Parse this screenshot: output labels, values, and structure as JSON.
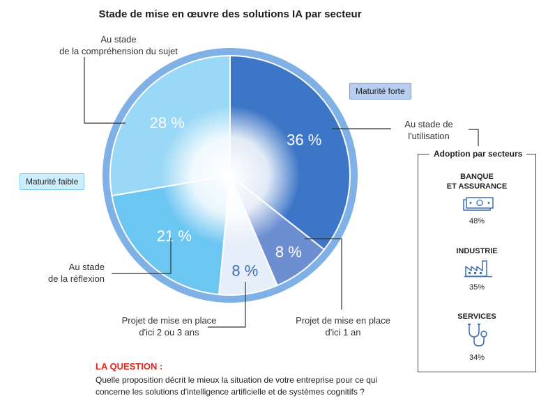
{
  "chart_data": {
    "type": "pie",
    "title": "Stade de mise en œuvre des solutions IA par secteur",
    "slices": [
      {
        "label": "Au stade de l'utilisation",
        "value": 36,
        "value_label": "36 %",
        "color": "#3d76c7"
      },
      {
        "label": "Projet de mise en place d'ici 1 an",
        "value": 8,
        "value_label": "8 %",
        "color": "#6d8fd2"
      },
      {
        "label": "Projet de mise en place d'ici 2 ou 3 ans",
        "value": 8,
        "value_label": "8 %",
        "color": "#e6eef9"
      },
      {
        "label": "Au stade de la réflexion",
        "value": 21,
        "value_label": "21 %",
        "color": "#6cc6f2"
      },
      {
        "label": "Au stade de la compréhension du sujet",
        "value": 28,
        "value_label": "28 %",
        "color": "#99d8f6"
      }
    ],
    "start_angle_deg": 0,
    "direction": "clockwise"
  },
  "callouts": {
    "comprehension": [
      "Au stade",
      "de la compréhension du sujet"
    ],
    "utilisation": [
      "Au stade de",
      "l'utilisation"
    ],
    "reflexion": [
      "Au stade",
      "de la réflexion"
    ],
    "projet_2_3": [
      "Projet de mise en place",
      "d'ici 2 ou 3 ans"
    ],
    "projet_1": [
      "Projet de mise en place",
      "d'ici 1 an"
    ]
  },
  "maturity": {
    "forte": "Maturité forte",
    "faible": "Maturité faible"
  },
  "adoption": {
    "title": "Adoption par secteurs",
    "sectors": [
      {
        "name_line1": "BANQUE",
        "name_line2": "ET ASSURANCE",
        "pct": "48%",
        "icon": "banknote-icon"
      },
      {
        "name_line1": "INDUSTRIE",
        "name_line2": "",
        "pct": "35%",
        "icon": "factory-icon"
      },
      {
        "name_line1": "SERVICES",
        "name_line2": "",
        "pct": "34%",
        "icon": "stethoscope-icon"
      }
    ]
  },
  "question": {
    "label": "LA QUESTION :",
    "line1": "Quelle proposition décrit le mieux la situation de votre entreprise pour ce qui",
    "line2": "concerne les solutions d'intelligence artificielle et de systèmes cognitifs ?"
  }
}
